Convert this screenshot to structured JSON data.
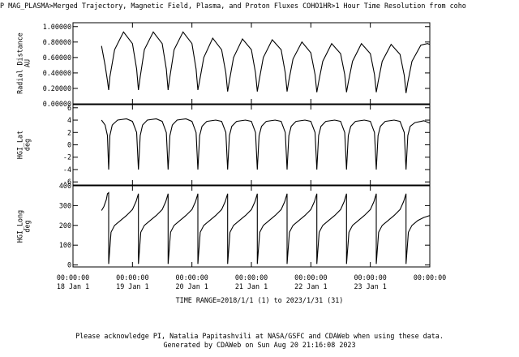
{
  "header": {
    "title": "P  MAG_PLASMA>Merged Trajectory, Magnetic Field, Plasma, and Proton Fluxes  COHO1HR>1 Hour Time Resolution from coho"
  },
  "chart_data": [
    {
      "type": "line",
      "ylabel_lines": [
        "Radial Distance",
        "AU"
      ],
      "ylim": [
        0.0,
        1.05
      ],
      "yticks": [
        0.0,
        0.2,
        0.4,
        0.6,
        0.8,
        1.0
      ],
      "ytick_labels": [
        "0.00000",
        "0.20000",
        "0.40000",
        "0.60000",
        "0.80000",
        "1.00000"
      ],
      "series": [
        {
          "x": [
            0.48,
            0.54,
            0.58,
            0.6,
            0.62,
            0.7,
            0.85,
            1.0,
            1.07,
            1.1,
            1.13,
            1.2,
            1.35,
            1.5,
            1.57,
            1.6,
            1.63,
            1.7,
            1.85,
            2.0,
            2.07,
            2.1,
            2.13,
            2.2,
            2.35,
            2.5,
            2.57,
            2.6,
            2.63,
            2.7,
            2.85,
            3.0,
            3.07,
            3.1,
            3.13,
            3.2,
            3.35,
            3.5,
            3.57,
            3.6,
            3.63,
            3.7,
            3.85,
            4.0,
            4.07,
            4.1,
            4.13,
            4.2,
            4.35,
            4.5,
            4.57,
            4.6,
            4.63,
            4.7,
            4.85,
            5.0,
            5.07,
            5.1,
            5.13,
            5.2,
            5.35,
            5.5,
            5.57,
            5.6,
            5.63,
            5.7,
            5.85,
            5.96,
            6.0
          ],
          "values": [
            0.75,
            0.5,
            0.3,
            0.18,
            0.35,
            0.7,
            0.93,
            0.78,
            0.45,
            0.18,
            0.35,
            0.7,
            0.93,
            0.78,
            0.45,
            0.18,
            0.35,
            0.7,
            0.93,
            0.78,
            0.45,
            0.18,
            0.3,
            0.6,
            0.85,
            0.7,
            0.4,
            0.16,
            0.3,
            0.6,
            0.84,
            0.7,
            0.4,
            0.16,
            0.3,
            0.6,
            0.83,
            0.7,
            0.4,
            0.16,
            0.3,
            0.58,
            0.8,
            0.66,
            0.38,
            0.15,
            0.28,
            0.55,
            0.78,
            0.65,
            0.38,
            0.15,
            0.28,
            0.55,
            0.78,
            0.65,
            0.38,
            0.15,
            0.28,
            0.55,
            0.77,
            0.64,
            0.37,
            0.14,
            0.28,
            0.55,
            0.76,
            0.78,
            0.77
          ]
        }
      ]
    },
    {
      "type": "line",
      "ylabel_lines": [
        "HGI_Lat",
        "deg"
      ],
      "ylim": [
        -6.5,
        6.5
      ],
      "yticks": [
        -6,
        -4,
        -2,
        0,
        2,
        4,
        6
      ],
      "ytick_labels": [
        "-6",
        "-4",
        "-2",
        "0",
        "2",
        "4",
        "6"
      ],
      "series": [
        {
          "x": [
            0.48,
            0.54,
            0.58,
            0.6,
            0.62,
            0.66,
            0.75,
            0.9,
            1.0,
            1.07,
            1.1,
            1.13,
            1.17,
            1.25,
            1.4,
            1.5,
            1.57,
            1.6,
            1.63,
            1.67,
            1.75,
            1.9,
            2.0,
            2.07,
            2.1,
            2.13,
            2.17,
            2.25,
            2.4,
            2.5,
            2.57,
            2.6,
            2.63,
            2.67,
            2.75,
            2.9,
            3.0,
            3.07,
            3.1,
            3.13,
            3.17,
            3.25,
            3.4,
            3.5,
            3.57,
            3.6,
            3.63,
            3.67,
            3.75,
            3.9,
            4.0,
            4.07,
            4.1,
            4.13,
            4.17,
            4.25,
            4.4,
            4.5,
            4.57,
            4.6,
            4.63,
            4.67,
            4.75,
            4.9,
            5.0,
            5.07,
            5.1,
            5.13,
            5.17,
            5.25,
            5.4,
            5.5,
            5.57,
            5.6,
            5.63,
            5.67,
            5.75,
            5.9,
            6.0
          ],
          "values": [
            4.0,
            3.2,
            1.5,
            -4.0,
            1.5,
            3.2,
            4.0,
            4.2,
            3.8,
            2.0,
            -4.0,
            1.5,
            3.2,
            4.0,
            4.2,
            3.8,
            2.0,
            -4.0,
            1.5,
            3.2,
            4.0,
            4.2,
            3.8,
            2.0,
            -4.0,
            1.5,
            3.0,
            3.8,
            4.0,
            3.8,
            2.0,
            -4.0,
            1.5,
            3.0,
            3.8,
            4.0,
            3.8,
            2.0,
            -4.0,
            1.5,
            3.0,
            3.8,
            4.0,
            3.8,
            2.0,
            -4.0,
            1.5,
            3.0,
            3.8,
            4.0,
            3.8,
            2.0,
            -4.0,
            1.5,
            3.0,
            3.8,
            4.0,
            3.8,
            2.0,
            -4.0,
            1.5,
            3.0,
            3.8,
            4.0,
            3.8,
            2.0,
            -4.0,
            1.5,
            3.0,
            3.8,
            4.0,
            3.8,
            2.0,
            -4.0,
            1.5,
            3.0,
            3.6,
            3.9,
            3.5
          ]
        }
      ]
    },
    {
      "type": "line",
      "ylabel_lines": [
        "HGI_Long",
        "deg"
      ],
      "ylim": [
        -10,
        400
      ],
      "yticks": [
        0,
        100,
        200,
        300,
        400
      ],
      "ytick_labels": [
        "0",
        "100",
        "200",
        "300",
        "400"
      ],
      "series": [
        {
          "x": [
            0.48,
            0.52,
            0.56,
            0.58,
            0.6,
            0.6,
            0.64,
            0.7,
            0.8,
            0.9,
            1.0,
            1.06,
            1.1,
            1.1,
            1.14,
            1.2,
            1.3,
            1.4,
            1.5,
            1.56,
            1.6,
            1.6,
            1.64,
            1.7,
            1.8,
            1.9,
            2.0,
            2.06,
            2.1,
            2.1,
            2.14,
            2.2,
            2.3,
            2.4,
            2.5,
            2.56,
            2.6,
            2.6,
            2.64,
            2.7,
            2.8,
            2.9,
            3.0,
            3.06,
            3.1,
            3.1,
            3.14,
            3.2,
            3.3,
            3.4,
            3.5,
            3.56,
            3.6,
            3.6,
            3.64,
            3.7,
            3.8,
            3.9,
            4.0,
            4.06,
            4.1,
            4.1,
            4.14,
            4.2,
            4.3,
            4.4,
            4.5,
            4.56,
            4.6,
            4.6,
            4.64,
            4.7,
            4.8,
            4.9,
            5.0,
            5.06,
            5.1,
            5.1,
            5.14,
            5.2,
            5.3,
            5.4,
            5.5,
            5.56,
            5.6,
            5.6,
            5.64,
            5.7,
            5.8,
            5.9,
            6.0
          ],
          "values": [
            275,
            295,
            330,
            360,
            365,
            5,
            165,
            200,
            225,
            250,
            280,
            320,
            360,
            5,
            165,
            200,
            225,
            250,
            280,
            320,
            360,
            5,
            165,
            200,
            225,
            250,
            280,
            320,
            360,
            5,
            165,
            200,
            225,
            250,
            280,
            320,
            360,
            5,
            165,
            200,
            225,
            250,
            280,
            320,
            360,
            5,
            165,
            200,
            225,
            250,
            280,
            320,
            360,
            5,
            165,
            200,
            225,
            250,
            280,
            320,
            360,
            5,
            165,
            200,
            225,
            250,
            280,
            320,
            360,
            5,
            165,
            200,
            225,
            250,
            280,
            320,
            360,
            5,
            165,
            200,
            225,
            250,
            280,
            320,
            360,
            5,
            165,
            200,
            225,
            240,
            250
          ]
        }
      ]
    }
  ],
  "x_axis": {
    "range": [
      0.0,
      6.0
    ],
    "tick_positions": [
      0,
      1,
      2,
      3,
      4,
      5,
      6
    ],
    "tick_labels_top": [
      "00:00:00",
      "00:00:00",
      "00:00:00",
      "00:00:00",
      "00:00:00",
      "00:00:00",
      "00:00:00"
    ],
    "tick_labels_bottom": [
      "18 Jan  1",
      "19 Jan  1",
      "20 Jan  1",
      "21 Jan  1",
      "22 Jan  1",
      "23 Jan  1",
      ""
    ],
    "time_range": "TIME RANGE=2018/1/1 (1) to 2023/1/31 (31)"
  },
  "footer": {
    "line1": "Please acknowledge PI, Natalia Papitashvili at NASA/GSFC and CDAWeb when using these data.",
    "line2": "Generated by CDAWeb on Sun Aug 20 21:16:08 2023"
  },
  "colors": {
    "line": "#000000",
    "axis": "#000000",
    "background": "#ffffff"
  }
}
